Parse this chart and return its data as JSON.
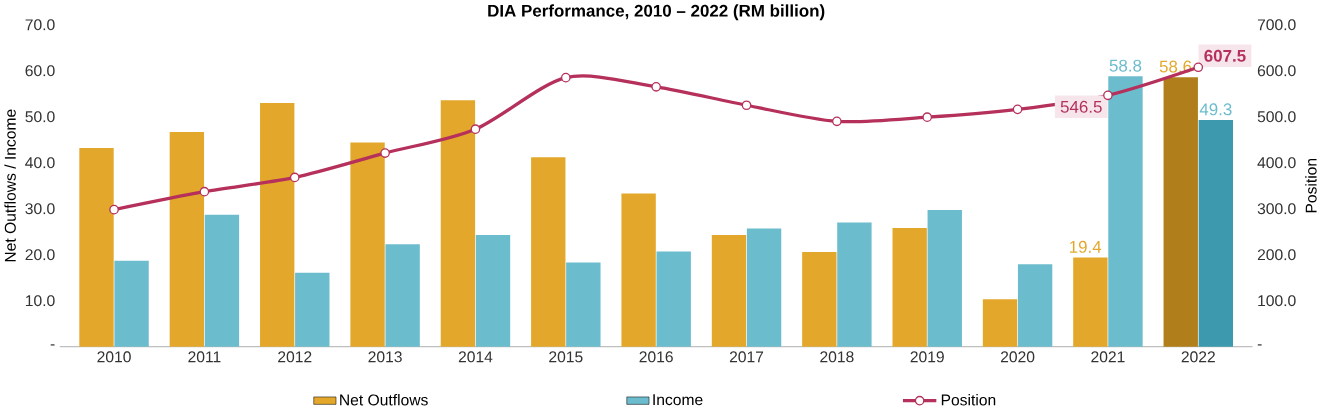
{
  "chart_data": {
    "type": "bar",
    "title": "DIA Performance, 2010 – 2022 (RM billion)",
    "ylabel": "Net Outflows / Income",
    "y2label": "Position",
    "categories": [
      "2010",
      "2011",
      "2012",
      "2013",
      "2014",
      "2015",
      "2016",
      "2017",
      "2018",
      "2019",
      "2020",
      "2021",
      "2022"
    ],
    "series": [
      {
        "name": "Net Outflows",
        "color": "#e3a82b",
        "colors": [
          "#e3a82b",
          "#e3a82b",
          "#e3a82b",
          "#e3a82b",
          "#e3a82b",
          "#e3a82b",
          "#e3a82b",
          "#e3a82b",
          "#e3a82b",
          "#e3a82b",
          "#e3a82b",
          "#e3a82b",
          "#b07f1c"
        ],
        "values": [
          43.2,
          46.7,
          53.0,
          44.4,
          53.6,
          41.2,
          33.3,
          24.3,
          20.6,
          25.8,
          10.3,
          19.4,
          58.6
        ],
        "value_labels": [
          null,
          null,
          null,
          null,
          null,
          null,
          null,
          null,
          null,
          null,
          null,
          "19.4",
          "58.6"
        ]
      },
      {
        "name": "Income",
        "color": "#6bbccd",
        "colors": [
          "#6bbccd",
          "#6bbccd",
          "#6bbccd",
          "#6bbccd",
          "#6bbccd",
          "#6bbccd",
          "#6bbccd",
          "#6bbccd",
          "#6bbccd",
          "#6bbccd",
          "#6bbccd",
          "#6bbccd",
          "#3d9aae"
        ],
        "values": [
          18.7,
          28.7,
          16.1,
          22.3,
          24.3,
          18.3,
          20.7,
          25.7,
          27.0,
          29.7,
          17.9,
          58.8,
          49.3
        ],
        "value_labels": [
          null,
          null,
          null,
          null,
          null,
          null,
          null,
          null,
          null,
          null,
          null,
          "58.8",
          "49.3"
        ]
      },
      {
        "name": "Position",
        "type": "line",
        "axis": "y2",
        "color": "#b5305a",
        "values": [
          298,
          337,
          368,
          421,
          473,
          585,
          565,
          525,
          490,
          499,
          516,
          546.5,
          607.5
        ],
        "value_labels": [
          null,
          null,
          null,
          null,
          null,
          null,
          null,
          null,
          null,
          null,
          null,
          "546.5",
          "607.5"
        ]
      }
    ],
    "ylim": [
      0,
      70
    ],
    "yticks": [
      {
        "value": 0,
        "label": "-"
      },
      {
        "value": 10,
        "label": "10.0"
      },
      {
        "value": 20,
        "label": "20.0"
      },
      {
        "value": 30,
        "label": "30.0"
      },
      {
        "value": 40,
        "label": "40.0"
      },
      {
        "value": 50,
        "label": "50.0"
      },
      {
        "value": 60,
        "label": "60.0"
      },
      {
        "value": 70,
        "label": "70.0"
      }
    ],
    "y2lim": [
      0,
      700
    ],
    "y2ticks": [
      {
        "value": 0,
        "label": "-"
      },
      {
        "value": 100,
        "label": "100.0"
      },
      {
        "value": 200,
        "label": "200.0"
      },
      {
        "value": 300,
        "label": "300.0"
      },
      {
        "value": 400,
        "label": "400.0"
      },
      {
        "value": 500,
        "label": "500.0"
      },
      {
        "value": 600,
        "label": "600.0"
      },
      {
        "value": 700,
        "label": "700.0"
      }
    ],
    "grid": false,
    "legend": "bottom",
    "marker": "circle",
    "line_style": "solid"
  }
}
